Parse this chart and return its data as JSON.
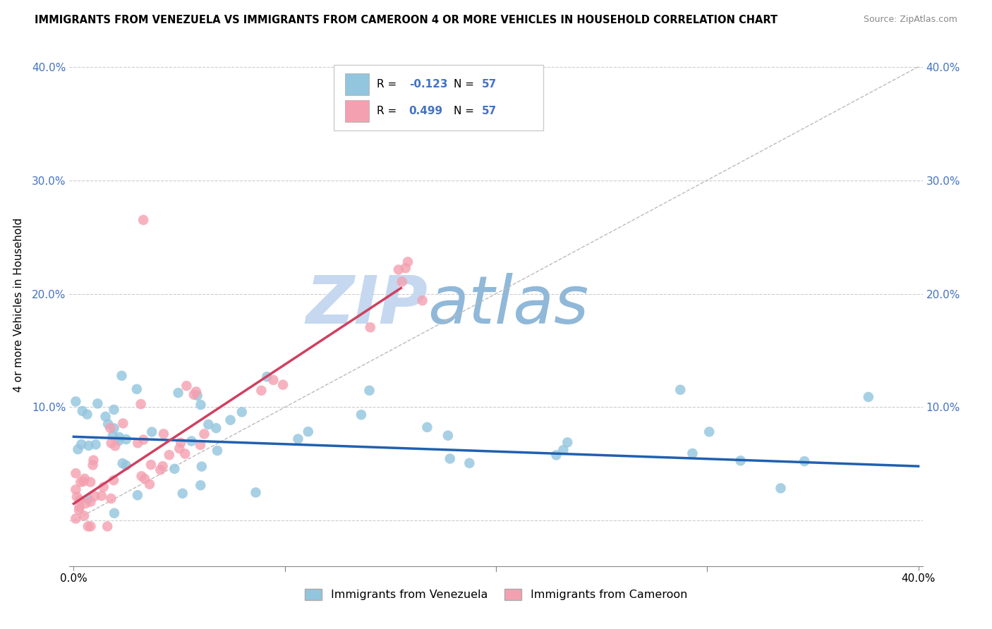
{
  "title": "IMMIGRANTS FROM VENEZUELA VS IMMIGRANTS FROM CAMEROON 4 OR MORE VEHICLES IN HOUSEHOLD CORRELATION CHART",
  "source": "Source: ZipAtlas.com",
  "ylabel": "4 or more Vehicles in Household",
  "xlim": [
    -0.002,
    0.402
  ],
  "ylim": [
    -0.04,
    0.42
  ],
  "yticks": [
    0.0,
    0.1,
    0.2,
    0.3,
    0.4
  ],
  "color_venezuela": "#92c5de",
  "color_cameroon": "#f4a0b0",
  "color_trend_venezuela": "#2060b0",
  "color_trend_cameroon": "#d04060",
  "watermark_zip": "ZIP",
  "watermark_atlas": "atlas",
  "watermark_color_zip": "#c5d8f0",
  "watermark_color_atlas": "#90b8d8",
  "background_color": "#ffffff",
  "grid_color": "#cccccc",
  "fig_bg": "#ffffff",
  "ven_trend_x0": 0.0,
  "ven_trend_y0": 0.074,
  "ven_trend_x1": 0.4,
  "ven_trend_y1": 0.048,
  "cam_trend_x0": 0.0,
  "cam_trend_y0": 0.015,
  "cam_trend_x1": 0.155,
  "cam_trend_y1": 0.205
}
